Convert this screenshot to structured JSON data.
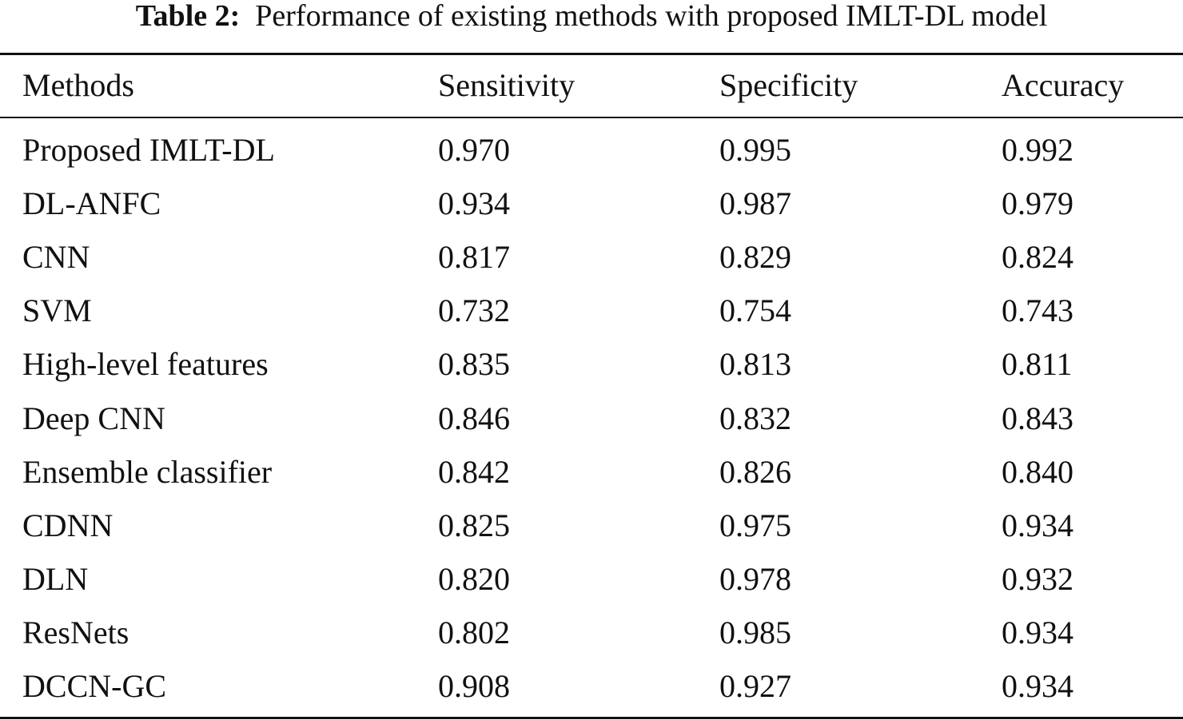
{
  "caption": {
    "label": "Table 2:",
    "text": "Performance of existing methods with proposed IMLT-DL model"
  },
  "columns": [
    "Methods",
    "Sensitivity",
    "Specificity",
    "Accuracy"
  ],
  "rows": [
    [
      "Proposed IMLT-DL",
      "0.970",
      "0.995",
      "0.992"
    ],
    [
      "DL-ANFC",
      "0.934",
      "0.987",
      "0.979"
    ],
    [
      "CNN",
      "0.817",
      "0.829",
      "0.824"
    ],
    [
      "SVM",
      "0.732",
      "0.754",
      "0.743"
    ],
    [
      "High-level features",
      "0.835",
      "0.813",
      "0.811"
    ],
    [
      "Deep CNN",
      "0.846",
      "0.832",
      "0.843"
    ],
    [
      "Ensemble classifier",
      "0.842",
      "0.826",
      "0.840"
    ],
    [
      "CDNN",
      "0.825",
      "0.975",
      "0.934"
    ],
    [
      "DLN",
      "0.820",
      "0.978",
      "0.932"
    ],
    [
      "ResNets",
      "0.802",
      "0.985",
      "0.934"
    ],
    [
      "DCCN-GC",
      "0.908",
      "0.927",
      "0.934"
    ]
  ]
}
